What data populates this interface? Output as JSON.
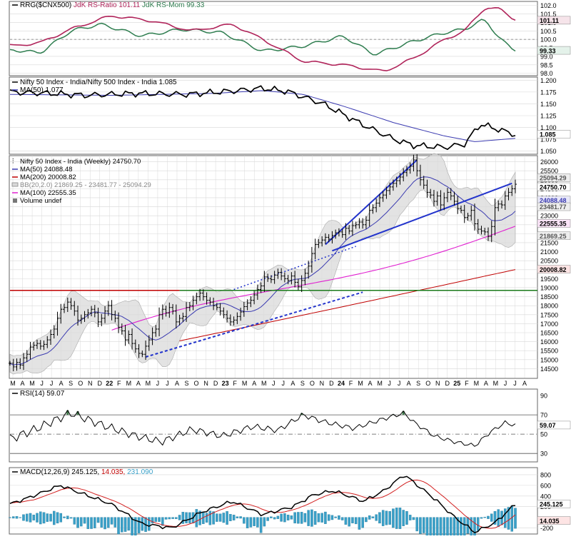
{
  "colors": {
    "black": "#000000",
    "crimson": "#b0245a",
    "green": "#2e7d4f",
    "navy": "#3a3ab0",
    "magenta": "#e020d0",
    "red": "#c00000",
    "blue": "#2233cc",
    "darkgreen": "#1b7a1b",
    "grid": "#d8d8d8",
    "macd_signal": "#d32020",
    "histo": "#3aa0c8",
    "bbfill": "#d9d9d9"
  },
  "panels": {
    "rrg": {
      "legend": [
        "RRG($CNX500)",
        "JdK RS-Ratio 101.11",
        "JdK RS-Mom 99.33"
      ],
      "ticks": [
        "102.0",
        "101.5",
        "101.0",
        "100.5",
        "100.0",
        "99.5",
        "99.0",
        "98.5",
        "98.0"
      ],
      "badges": [
        "101.11",
        "99.33"
      ]
    },
    "ratio": {
      "legend": [
        "Nifty 50 Index - India/Nifty 500 Index - India 1.085",
        "MA(50) 1.077"
      ],
      "ticks": [
        "1.200",
        "1.175",
        "1.150",
        "1.125",
        "1.100",
        "1.075",
        "1.050"
      ],
      "badges": [
        "1.085"
      ]
    },
    "price": {
      "legend": [
        "Nifty 50 Index - India (Weekly) 24750.70",
        "MA(50) 24088.48",
        "MA(200) 20008.82",
        "BB(20,2.0) 21869.25 - 23481.77 - 25094.29",
        "MA(100) 22555.35",
        "Volume undef"
      ],
      "ticks": [
        "26000",
        "25500",
        "25000",
        "24500",
        "24000",
        "23500",
        "23000",
        "22500",
        "22000",
        "21500",
        "21000",
        "20500",
        "20000",
        "19500",
        "19000",
        "18500",
        "18000",
        "17500",
        "17000",
        "16500",
        "16000",
        "15500",
        "15000",
        "14500"
      ],
      "badges": [
        "25094.29",
        "24750.70",
        "24088.48",
        "23481.77",
        "22555.35",
        "21869.25",
        "20008.82"
      ]
    },
    "rsi": {
      "legend": [
        "RSI(14) 59.07"
      ],
      "ticks": [
        "90",
        "70",
        "50",
        "30"
      ],
      "badges": [
        "59.07"
      ]
    },
    "macd": {
      "legend": [
        "MACD(12,26,9) 245.125,",
        "14.035,",
        "231.090"
      ],
      "ticks": [
        "800",
        "600",
        "400",
        "200",
        "-200"
      ],
      "badges": [
        "245.125",
        "14.035"
      ]
    }
  },
  "xaxis": {
    "labels": [
      "M",
      "A",
      "M",
      "J",
      "J",
      "A",
      "S",
      "O",
      "N",
      "D",
      "22",
      "F",
      "M",
      "A",
      "M",
      "J",
      "J",
      "A",
      "S",
      "O",
      "N",
      "D",
      "23",
      "F",
      "M",
      "A",
      "M",
      "J",
      "J",
      "A",
      "S",
      "O",
      "N",
      "D",
      "24",
      "F",
      "M",
      "A",
      "M",
      "J",
      "J",
      "A",
      "S",
      "O",
      "N",
      "D",
      "25",
      "F",
      "M",
      "A",
      "M",
      "J",
      "J",
      "A"
    ],
    "bold": [
      "22",
      "23",
      "24",
      "25"
    ]
  },
  "chart_data": [
    {
      "type": "line",
      "title": "RRG($CNX500)",
      "series": [
        {
          "name": "JdK RS-Ratio",
          "last": 101.11
        },
        {
          "name": "JdK RS-Mom",
          "last": 99.33
        }
      ],
      "ylim": [
        97.9,
        102.2
      ]
    },
    {
      "type": "line",
      "title": "Nifty 50 Index - India/Nifty 500 Index - India",
      "series": [
        {
          "name": "Nifty 50 Index - India/Nifty 500 Index - India",
          "last": 1.085
        },
        {
          "name": "MA(50)",
          "last": 1.077
        }
      ],
      "ylim": [
        1.045,
        1.205
      ]
    },
    {
      "type": "line",
      "title": "Nifty 50 Index - India (Weekly)",
      "close": [
        14800,
        14600,
        14850,
        14700,
        15100,
        15300,
        15700,
        15800,
        15900,
        15750,
        15850,
        16100,
        16400,
        16700,
        17300,
        17800,
        17900,
        18200,
        18000,
        17700,
        17200,
        17300,
        17500,
        17600,
        17800,
        17600,
        17100,
        17300,
        17700,
        18000,
        17500,
        17300,
        16800,
        16600,
        16100,
        16400,
        15900,
        15600,
        15350,
        15300,
        15750,
        16100,
        16500,
        16700,
        17500,
        17800,
        17600,
        17900,
        17700,
        17100,
        17300,
        17400,
        17900,
        18000,
        18300,
        18500,
        18700,
        18500,
        18300,
        18200,
        18000,
        17900,
        17700,
        17500,
        17300,
        17100,
        17200,
        17400,
        17650,
        17950,
        18150,
        18300,
        18600,
        18900,
        19100,
        19600,
        19500,
        19450,
        19700,
        19850,
        19650,
        19500,
        19400,
        19650,
        19300,
        19050,
        19400,
        19800,
        20200,
        20900,
        21400,
        21500,
        21650,
        21800,
        21700,
        21900,
        22050,
        22100,
        21950,
        22300,
        22150,
        22450,
        22500,
        22650,
        22500,
        22750,
        23300,
        23450,
        23700,
        24000,
        24150,
        24400,
        24600,
        24800,
        24950,
        25150,
        25400,
        25550,
        25750,
        26100,
        25500,
        25000,
        24700,
        24300,
        24150,
        23800,
        24100,
        23600,
        24000,
        24300,
        24100,
        23800,
        23400,
        23300,
        22900,
        23000,
        23300,
        22550,
        22250,
        22150,
        22100,
        21850,
        22400,
        23450,
        23650,
        23600,
        24100,
        24300,
        24500,
        24750
      ],
      "xlabel": "",
      "ylabel": "",
      "ylim": [
        14000,
        26300
      ],
      "annotations": [
        "horizontal support line near 18850",
        "rising dotted support trendline",
        "broadening wedge upper / lower trendlines"
      ],
      "legend": [
        {
          "name": "MA(50)",
          "last": 24088.48
        },
        {
          "name": "MA(200)",
          "last": 20008.82
        },
        {
          "name": "BB(20,2.0)",
          "lower": 21869.25,
          "mid": 23481.77,
          "upper": 25094.29
        },
        {
          "name": "MA(100)",
          "last": 22555.35
        }
      ]
    },
    {
      "type": "line",
      "title": "RSI(14)",
      "series": [
        {
          "name": "RSI(14)",
          "last": 59.07
        }
      ],
      "ylim": [
        22,
        96
      ],
      "reference_lines": [
        70,
        50,
        30
      ]
    },
    {
      "type": "line",
      "title": "MACD(12,26,9)",
      "series": [
        {
          "name": "MACD",
          "last": 245.125
        },
        {
          "name": "Signal",
          "last": 231.09
        },
        {
          "name": "Histogram",
          "last": 14.035
        }
      ],
      "ylim": [
        -300,
        920
      ]
    }
  ]
}
